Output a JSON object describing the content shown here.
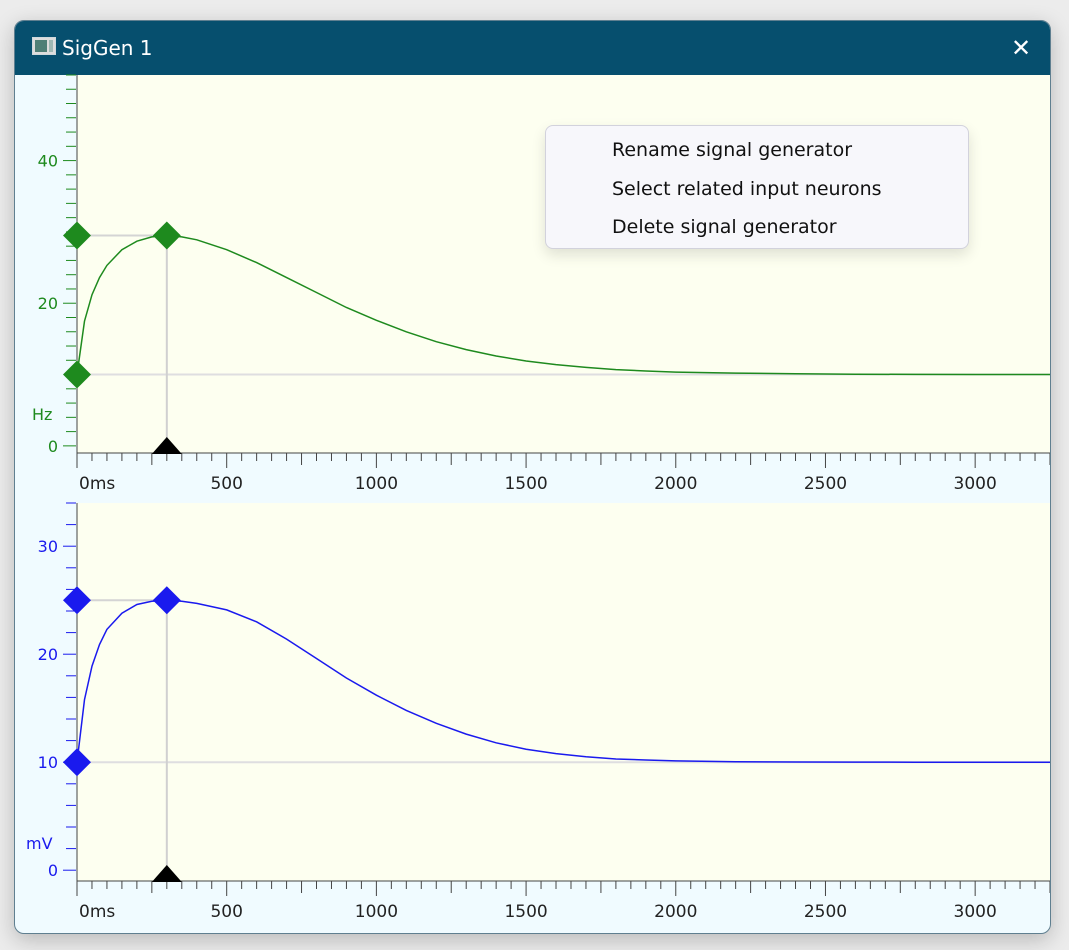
{
  "window": {
    "title": "SigGen 1",
    "close_glyph": "✕",
    "icon": "app-window-icon"
  },
  "context_menu": {
    "items": [
      "Rename signal generator",
      "Select related input neurons",
      "Delete signal generator"
    ]
  },
  "chart_data": [
    {
      "type": "line",
      "title": "",
      "unit": "Hz",
      "color": "#1e8a1e",
      "xlim": [
        0,
        3250
      ],
      "ylim": [
        -1,
        52
      ],
      "y_ticks": [
        0,
        20,
        40
      ],
      "x_ticks": [
        0,
        500,
        1000,
        1500,
        2000,
        2500,
        3000
      ],
      "x_tick_labels": [
        "0ms",
        "500",
        "1000",
        "1500",
        "2000",
        "2500",
        "3000"
      ],
      "baseline": 10,
      "peak": 29.5,
      "peak_time_ms": 300,
      "x": [
        0,
        25,
        50,
        75,
        100,
        150,
        200,
        250,
        300,
        350,
        400,
        500,
        600,
        700,
        800,
        900,
        1000,
        1100,
        1200,
        1300,
        1400,
        1500,
        1600,
        1700,
        1800,
        1900,
        2000,
        2200,
        2400,
        2600,
        2800,
        3000,
        3250
      ],
      "y": [
        10,
        17.5,
        21.2,
        23.6,
        25.3,
        27.5,
        28.7,
        29.3,
        29.5,
        29.3,
        28.9,
        27.5,
        25.7,
        23.6,
        21.5,
        19.4,
        17.6,
        16.0,
        14.6,
        13.5,
        12.6,
        11.9,
        11.4,
        11.0,
        10.7,
        10.5,
        10.35,
        10.2,
        10.1,
        10.05,
        10.02,
        10.01,
        10
      ],
      "handles": [
        {
          "x": 0,
          "y": 29.5
        },
        {
          "x": 0,
          "y": 10
        },
        {
          "x": 300,
          "y": 29.5
        }
      ],
      "marker_time_ms": 300
    },
    {
      "type": "line",
      "title": "",
      "unit": "mV",
      "color": "#1a1aee",
      "xlim": [
        0,
        3250
      ],
      "ylim": [
        -1,
        34
      ],
      "y_ticks": [
        0,
        10,
        20,
        30
      ],
      "x_ticks": [
        0,
        500,
        1000,
        1500,
        2000,
        2500,
        3000
      ],
      "x_tick_labels": [
        "0ms",
        "500",
        "1000",
        "1500",
        "2000",
        "2500",
        "3000"
      ],
      "baseline": 10,
      "peak": 25,
      "peak_time_ms": 300,
      "x": [
        0,
        25,
        50,
        75,
        100,
        150,
        200,
        250,
        300,
        350,
        400,
        500,
        600,
        700,
        800,
        900,
        1000,
        1100,
        1200,
        1300,
        1400,
        1500,
        1600,
        1700,
        1800,
        1900,
        2000,
        2200,
        2400,
        2600,
        2800,
        3000,
        3250
      ],
      "y": [
        10,
        15.8,
        18.9,
        20.9,
        22.3,
        23.8,
        24.6,
        24.9,
        25,
        24.9,
        24.7,
        24.1,
        23.0,
        21.4,
        19.6,
        17.8,
        16.2,
        14.8,
        13.6,
        12.6,
        11.8,
        11.2,
        10.8,
        10.5,
        10.3,
        10.2,
        10.12,
        10.05,
        10.02,
        10.01,
        10,
        10,
        10
      ],
      "handles": [
        {
          "x": 0,
          "y": 25
        },
        {
          "x": 0,
          "y": 10
        },
        {
          "x": 300,
          "y": 25
        }
      ],
      "marker_time_ms": 300
    }
  ]
}
